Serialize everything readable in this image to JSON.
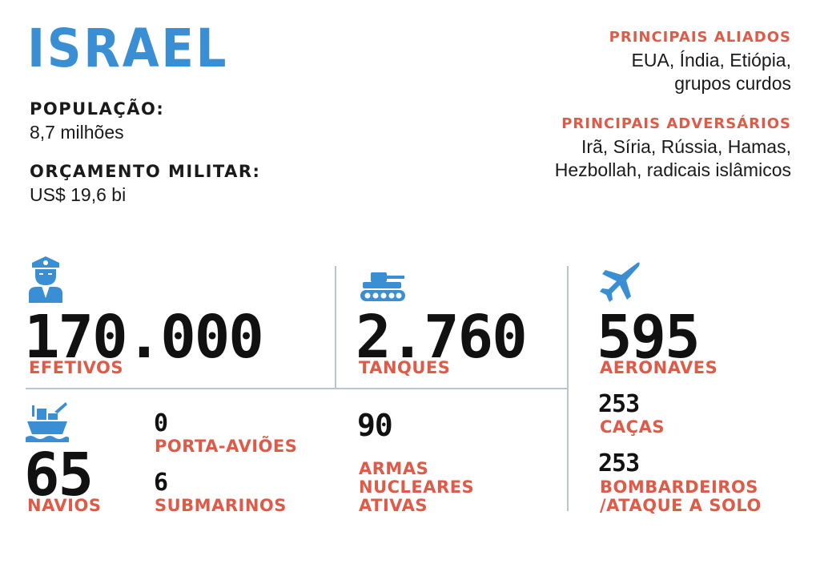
{
  "header": {
    "country": "ISRAEL",
    "population_label": "POPULAÇÃO:",
    "population_value": "8,7 milhões",
    "budget_label": "ORÇAMENTO MILITAR:",
    "budget_value": "US$ 19,6 bi"
  },
  "allies": {
    "label": "PRINCIPAIS ALIADOS",
    "line1": "EUA, Índia, Etiópia,",
    "line2": "grupos curdos"
  },
  "adversaries": {
    "label": "PRINCIPAIS ADVERSÁRIOS",
    "line1": "Irã, Síria, Rússia, Hamas,",
    "line2": "Hezbollah, radicais islâmicos"
  },
  "stats": {
    "troops": {
      "value": "170.000",
      "label": "EFETIVOS",
      "icon": "soldier-icon"
    },
    "tanks": {
      "value": "2.760",
      "label": "TANQUES",
      "icon": "tank-icon"
    },
    "aircraft": {
      "value": "595",
      "label": "AERONAVES",
      "icon": "jet-icon"
    },
    "ships": {
      "value": "65",
      "label": "NAVIOS",
      "icon": "ship-icon"
    },
    "carriers": {
      "value": "0",
      "label": "PORTA-AVIÕES"
    },
    "submarines": {
      "value": "6",
      "label": "SUBMARINOS"
    },
    "nukes": {
      "value": "90",
      "line1": "ARMAS",
      "line2": "NUCLEARES",
      "line3": "ATIVAS"
    },
    "fighters": {
      "value": "253",
      "label": "CAÇAS"
    },
    "bombers": {
      "value": "253",
      "line1": "BOMBARDEIROS",
      "line2": "/ATAQUE A SOLO"
    }
  },
  "colors": {
    "accent_blue": "#3a8fd4",
    "accent_red": "#e05a48",
    "text": "#1a1a1a"
  }
}
